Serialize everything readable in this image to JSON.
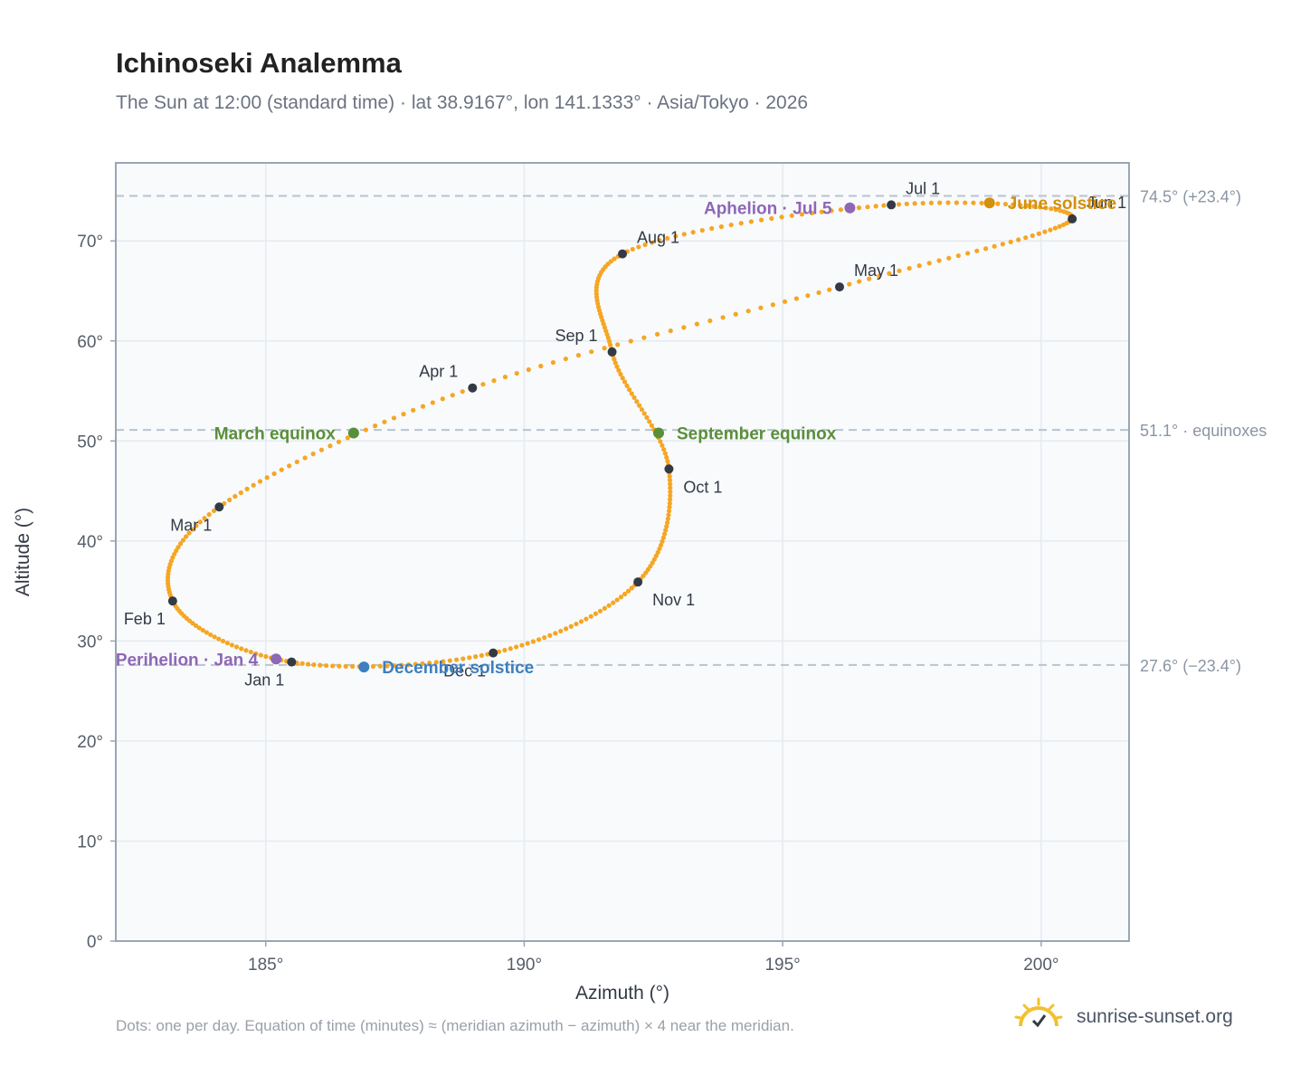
{
  "title": "Ichinoseki Analemma",
  "subtitle": "The Sun at 12:00 (standard time) · lat 38.9167°, lon 141.1333° · Asia/Tokyo · 2026",
  "footnote": "Dots: one per day. Equation of time (minutes) ≈ (meridian azimuth − azimuth) × 4 near the meridian.",
  "brand": {
    "name": "sunrise-sunset.org",
    "icon": "sun-logo-icon"
  },
  "colors": {
    "curve": "#f5a623",
    "month": "#333a45",
    "equinox": "#5a8f3a",
    "june": "#d4900a",
    "december": "#3d7fc0",
    "apsis": "#8e67b5",
    "guide": "#b8c4d0",
    "grid": "#e6ebf0",
    "plot_bg": "#f8fafc",
    "frame": "#9aa5b5"
  },
  "chart_data": {
    "type": "scatter",
    "title": "Ichinoseki Analemma",
    "xlabel": "Azimuth (°)",
    "ylabel": "Altitude (°)",
    "xlim": [
      182.1,
      201.7
    ],
    "ylim": [
      0,
      77.8
    ],
    "grid": true,
    "x_ticks": [
      185,
      190,
      195,
      200
    ],
    "x_tick_labels": [
      "185°",
      "190°",
      "195°",
      "200°"
    ],
    "y_ticks": [
      0,
      10,
      20,
      30,
      40,
      50,
      60,
      70
    ],
    "y_tick_labels": [
      "0°",
      "10°",
      "20°",
      "30°",
      "40°",
      "50°",
      "60°",
      "70°"
    ],
    "path_months": [
      {
        "label": "Jan 1",
        "az": 185.5,
        "alt": 27.9
      },
      {
        "label": "Feb 1",
        "az": 183.2,
        "alt": 34.0
      },
      {
        "label": "Mar 1",
        "az": 184.1,
        "alt": 43.4
      },
      {
        "label": "Apr 1",
        "az": 189.0,
        "alt": 55.3
      },
      {
        "label": "May 1",
        "az": 196.1,
        "alt": 65.4
      },
      {
        "label": "Jun 1",
        "az": 200.6,
        "alt": 72.2
      },
      {
        "label": "Jul 1",
        "az": 197.1,
        "alt": 73.6
      },
      {
        "label": "Aug 1",
        "az": 191.9,
        "alt": 68.7
      },
      {
        "label": "Sep 1",
        "az": 191.7,
        "alt": 58.9
      },
      {
        "label": "Oct 1",
        "az": 192.8,
        "alt": 47.2
      },
      {
        "label": "Nov 1",
        "az": 192.2,
        "alt": 35.9
      },
      {
        "label": "Dec 1",
        "az": 189.4,
        "alt": 28.8
      },
      {
        "label": "Jan 1",
        "az": 185.5,
        "alt": 27.9
      }
    ],
    "month_labels": [
      {
        "label": "Jan 1",
        "az": 185.5,
        "alt": 27.9,
        "pos": "below-left"
      },
      {
        "label": "Feb 1",
        "az": 183.2,
        "alt": 34.0,
        "pos": "below-left"
      },
      {
        "label": "Mar 1",
        "az": 184.1,
        "alt": 43.4,
        "pos": "below-left"
      },
      {
        "label": "Apr 1",
        "az": 189.0,
        "alt": 55.3,
        "pos": "above-left"
      },
      {
        "label": "May 1",
        "az": 196.1,
        "alt": 65.4,
        "pos": "above-right"
      },
      {
        "label": "Jun 1",
        "az": 200.6,
        "alt": 72.2,
        "pos": "above-right"
      },
      {
        "label": "Jul 1",
        "az": 197.1,
        "alt": 73.6,
        "pos": "above-right"
      },
      {
        "label": "Aug 1",
        "az": 191.9,
        "alt": 68.7,
        "pos": "above-right"
      },
      {
        "label": "Sep 1",
        "az": 191.7,
        "alt": 58.9,
        "pos": "above-left"
      },
      {
        "label": "Oct 1",
        "az": 192.8,
        "alt": 47.2,
        "pos": "below-right"
      },
      {
        "label": "Nov 1",
        "az": 192.2,
        "alt": 35.9,
        "pos": "below-right"
      },
      {
        "label": "Dec 1",
        "az": 189.4,
        "alt": 28.8,
        "pos": "below-left"
      }
    ],
    "events": [
      {
        "label": "March equinox",
        "az": 186.7,
        "alt": 50.8,
        "kind": "equinox",
        "side": "left"
      },
      {
        "label": "September equinox",
        "az": 192.6,
        "alt": 50.8,
        "kind": "equinox",
        "side": "right"
      },
      {
        "label": "June solstice",
        "az": 199.0,
        "alt": 73.8,
        "kind": "june",
        "side": "right"
      },
      {
        "label": "December solstice",
        "az": 186.9,
        "alt": 27.4,
        "kind": "december",
        "side": "right"
      },
      {
        "label": "Aphelion · Jul 5",
        "az": 196.3,
        "alt": 73.3,
        "kind": "apsis",
        "side": "left"
      },
      {
        "label": "Perihelion · Jan 4",
        "az": 185.2,
        "alt": 28.2,
        "kind": "apsis",
        "side": "left"
      }
    ],
    "reference_lines": [
      {
        "alt": 74.5,
        "label": "74.5° (+23.4°)"
      },
      {
        "alt": 51.1,
        "label": "51.1° · equinoxes"
      },
      {
        "alt": 27.6,
        "label": "27.6° (−23.4°)"
      }
    ]
  }
}
